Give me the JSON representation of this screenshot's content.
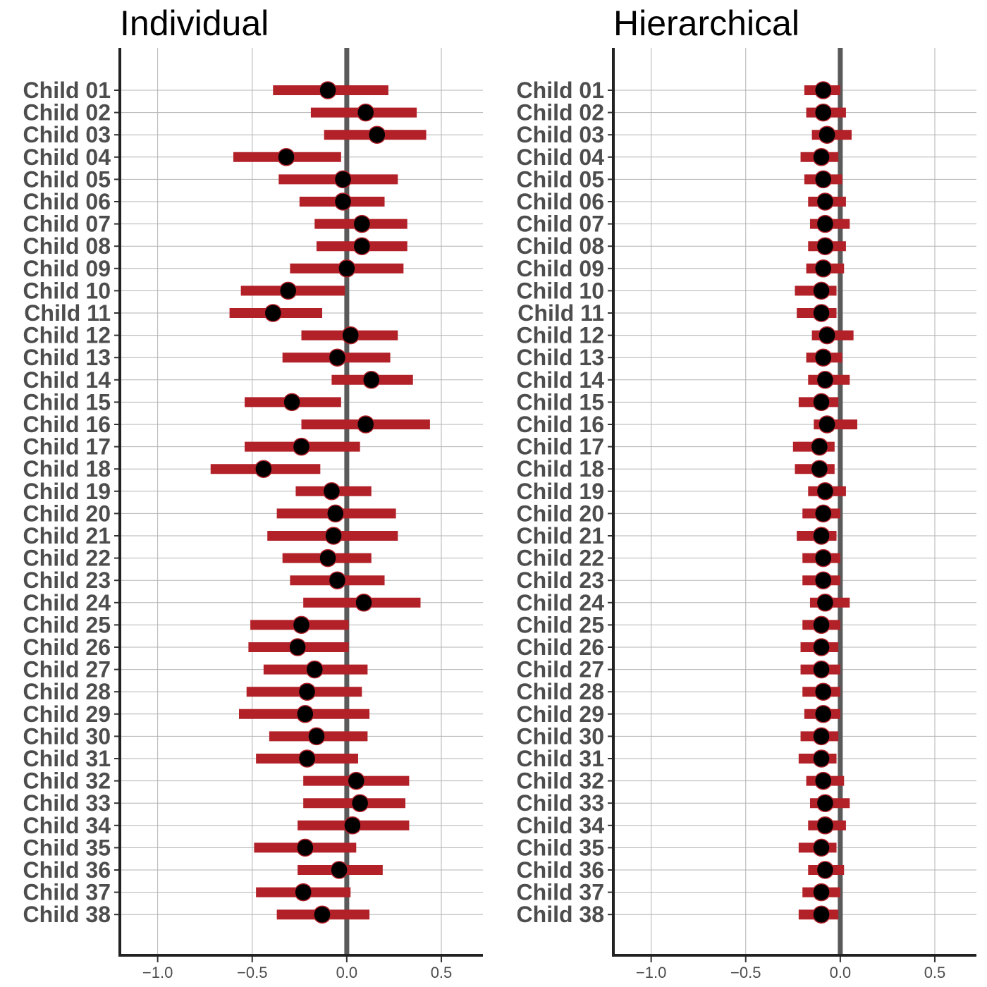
{
  "colors": {
    "interval": "#b22028",
    "point": "#000000",
    "point_edge": "#b22028",
    "zero_line": "#5a5a5a"
  },
  "chart_data": [
    {
      "type": "pointrange",
      "title": "Individual",
      "xlabel": "",
      "ylabel": "",
      "xlim": [
        -1.2,
        0.72
      ],
      "xticks": [
        -1.0,
        -0.5,
        0.0,
        0.5
      ],
      "xtick_labels": [
        "−1.0",
        "−0.5",
        "0.0",
        "0.5"
      ],
      "reference_line": 0,
      "categories": [
        "Child 01",
        "Child 02",
        "Child 03",
        "Child 04",
        "Child 05",
        "Child 06",
        "Child 07",
        "Child 08",
        "Child 09",
        "Child 10",
        "Child 11",
        "Child 12",
        "Child 13",
        "Child 14",
        "Child 15",
        "Child 16",
        "Child 17",
        "Child 18",
        "Child 19",
        "Child 20",
        "Child 21",
        "Child 22",
        "Child 23",
        "Child 24",
        "Child 25",
        "Child 26",
        "Child 27",
        "Child 28",
        "Child 29",
        "Child 30",
        "Child 31",
        "Child 32",
        "Child 33",
        "Child 34",
        "Child 35",
        "Child 36",
        "Child 37",
        "Child 38"
      ],
      "estimate": [
        -0.1,
        0.1,
        0.16,
        -0.32,
        -0.02,
        -0.02,
        0.08,
        0.08,
        0.0,
        -0.31,
        -0.39,
        0.02,
        -0.05,
        0.13,
        -0.29,
        0.1,
        -0.24,
        -0.44,
        -0.08,
        -0.06,
        -0.07,
        -0.1,
        -0.05,
        0.09,
        -0.24,
        -0.26,
        -0.17,
        -0.21,
        -0.22,
        -0.16,
        -0.21,
        0.05,
        0.07,
        0.03,
        -0.22,
        -0.04,
        -0.23,
        -0.13
      ],
      "lower": [
        -0.39,
        -0.19,
        -0.12,
        -0.6,
        -0.36,
        -0.25,
        -0.17,
        -0.16,
        -0.3,
        -0.56,
        -0.62,
        -0.24,
        -0.34,
        -0.08,
        -0.54,
        -0.24,
        -0.54,
        -0.72,
        -0.27,
        -0.37,
        -0.42,
        -0.34,
        -0.3,
        -0.23,
        -0.51,
        -0.52,
        -0.44,
        -0.53,
        -0.57,
        -0.41,
        -0.48,
        -0.23,
        -0.23,
        -0.26,
        -0.49,
        -0.26,
        -0.48,
        -0.37
      ],
      "upper": [
        0.22,
        0.37,
        0.42,
        -0.03,
        0.27,
        0.2,
        0.32,
        0.32,
        0.3,
        -0.01,
        -0.13,
        0.27,
        0.23,
        0.35,
        -0.03,
        0.44,
        0.07,
        -0.14,
        0.13,
        0.26,
        0.27,
        0.13,
        0.2,
        0.39,
        0.01,
        0.01,
        0.11,
        0.08,
        0.12,
        0.11,
        0.06,
        0.33,
        0.31,
        0.33,
        0.05,
        0.19,
        0.02,
        0.12
      ]
    },
    {
      "type": "pointrange",
      "title": "Hierarchical",
      "xlabel": "",
      "ylabel": "",
      "xlim": [
        -1.2,
        0.72
      ],
      "xticks": [
        -1.0,
        -0.5,
        0.0,
        0.5
      ],
      "xtick_labels": [
        "−1.0",
        "−0.5",
        "0.0",
        "0.5"
      ],
      "reference_line": 0,
      "categories": [
        "Child 01",
        "Child 02",
        "Child 03",
        "Child 04",
        "Child 05",
        "Child 06",
        "Child 07",
        "Child 08",
        "Child 09",
        "Child 10",
        "Child 11",
        "Child 12",
        "Child 13",
        "Child 14",
        "Child 15",
        "Child 16",
        "Child 17",
        "Child 18",
        "Child 19",
        "Child 20",
        "Child 21",
        "Child 22",
        "Child 23",
        "Child 24",
        "Child 25",
        "Child 26",
        "Child 27",
        "Child 28",
        "Child 29",
        "Child 30",
        "Child 31",
        "Child 32",
        "Child 33",
        "Child 34",
        "Child 35",
        "Child 36",
        "Child 37",
        "Child 38"
      ],
      "estimate": [
        -0.09,
        -0.09,
        -0.07,
        -0.1,
        -0.09,
        -0.08,
        -0.08,
        -0.08,
        -0.09,
        -0.1,
        -0.1,
        -0.07,
        -0.09,
        -0.08,
        -0.1,
        -0.07,
        -0.11,
        -0.11,
        -0.08,
        -0.09,
        -0.1,
        -0.09,
        -0.09,
        -0.08,
        -0.1,
        -0.1,
        -0.1,
        -0.09,
        -0.09,
        -0.1,
        -0.1,
        -0.09,
        -0.08,
        -0.08,
        -0.1,
        -0.08,
        -0.1,
        -0.1
      ],
      "lower": [
        -0.19,
        -0.18,
        -0.15,
        -0.21,
        -0.19,
        -0.17,
        -0.16,
        -0.17,
        -0.18,
        -0.24,
        -0.23,
        -0.15,
        -0.18,
        -0.17,
        -0.22,
        -0.14,
        -0.25,
        -0.24,
        -0.17,
        -0.2,
        -0.23,
        -0.2,
        -0.2,
        -0.16,
        -0.2,
        -0.21,
        -0.21,
        -0.2,
        -0.19,
        -0.21,
        -0.22,
        -0.18,
        -0.16,
        -0.17,
        -0.22,
        -0.17,
        -0.2,
        -0.22
      ],
      "upper": [
        0.0,
        0.03,
        0.06,
        -0.01,
        0.01,
        0.03,
        0.05,
        0.03,
        0.02,
        -0.02,
        -0.02,
        0.07,
        0.01,
        0.05,
        -0.01,
        0.09,
        -0.03,
        -0.03,
        0.03,
        0.0,
        -0.02,
        0.0,
        0.0,
        0.05,
        0.0,
        -0.01,
        0.0,
        0.0,
        0.0,
        -0.01,
        -0.02,
        0.02,
        0.05,
        0.03,
        -0.02,
        0.02,
        0.0,
        -0.01
      ]
    }
  ]
}
